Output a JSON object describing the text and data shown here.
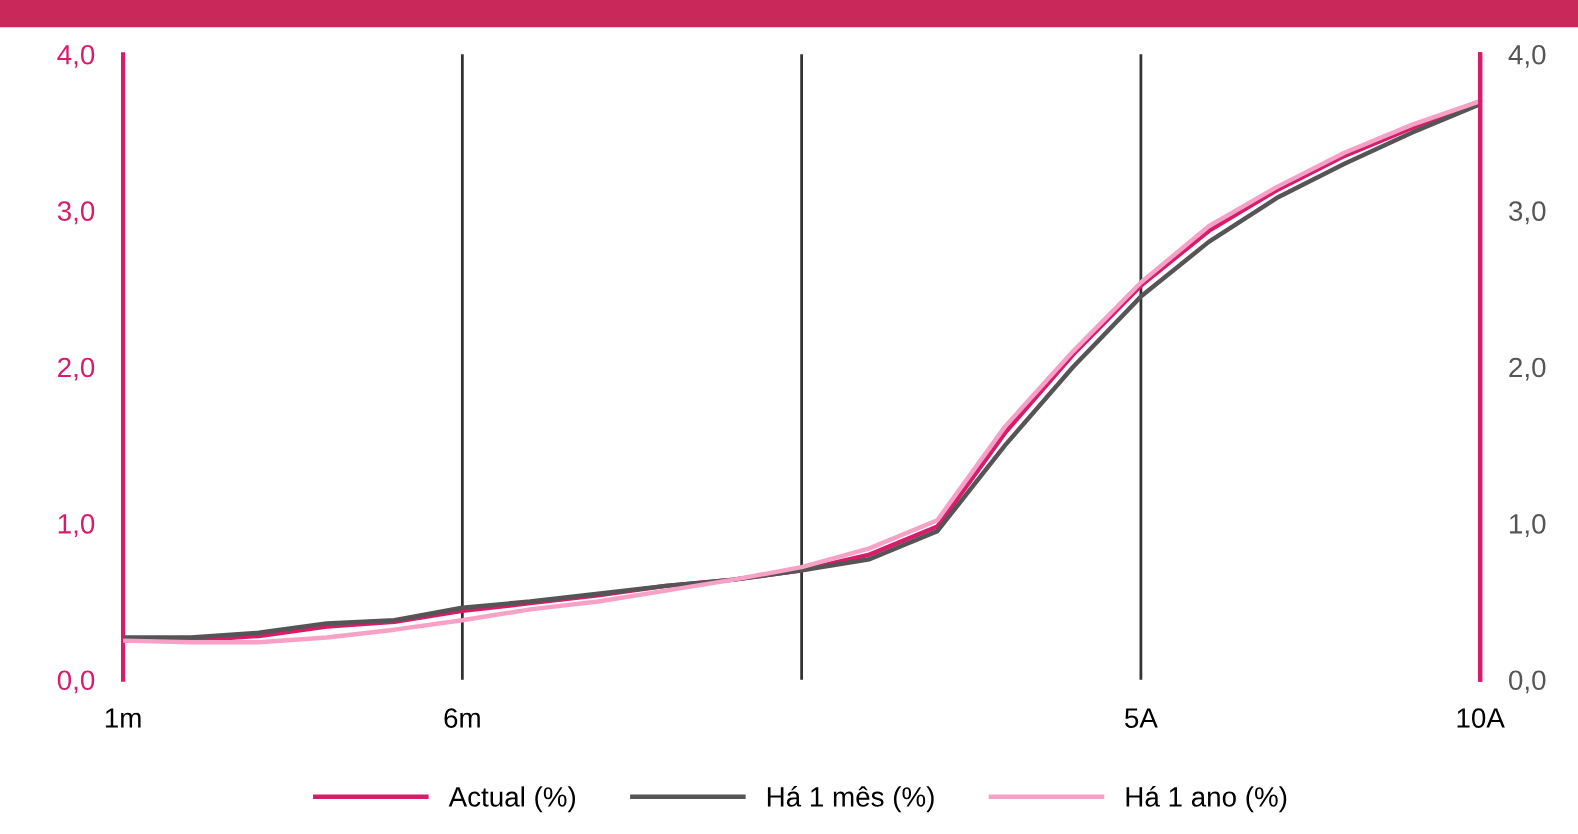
{
  "chart_data": {
    "type": "line",
    "categories": [
      "1m",
      null,
      null,
      null,
      null,
      "6m",
      null,
      null,
      null,
      null,
      null,
      null,
      null,
      null,
      null,
      "5A",
      null,
      null,
      null,
      null,
      "10A"
    ],
    "series": [
      {
        "name": "Actual (%)",
        "color": "#d81b6a",
        "values": [
          0.25,
          0.25,
          0.28,
          0.34,
          0.37,
          0.44,
          0.49,
          0.54,
          0.6,
          0.64,
          0.7,
          0.8,
          0.98,
          1.58,
          2.08,
          2.52,
          2.87,
          3.13,
          3.35,
          3.53,
          3.7
        ]
      },
      {
        "name": "Há 1 mês (%)",
        "color": "#555555",
        "values": [
          0.27,
          0.27,
          0.3,
          0.36,
          0.38,
          0.46,
          0.5,
          0.55,
          0.6,
          0.64,
          0.7,
          0.77,
          0.95,
          1.5,
          2.0,
          2.45,
          2.8,
          3.08,
          3.3,
          3.5,
          3.68
        ]
      },
      {
        "name": "Há 1 ano (%)",
        "color": "#f7a1c6",
        "values": [
          0.25,
          0.24,
          0.24,
          0.27,
          0.32,
          0.38,
          0.45,
          0.5,
          0.57,
          0.64,
          0.72,
          0.84,
          1.02,
          1.62,
          2.1,
          2.54,
          2.9,
          3.15,
          3.37,
          3.55,
          3.7
        ]
      }
    ],
    "ylim": [
      0,
      4
    ],
    "yticks": [
      {
        "value": 0,
        "label": "0,0"
      },
      {
        "value": 1,
        "label": "1,0"
      },
      {
        "value": 2,
        "label": "2,0"
      },
      {
        "value": 3,
        "label": "3,0"
      },
      {
        "value": 4,
        "label": "4,0"
      }
    ],
    "y2lim": [
      0,
      4
    ],
    "y2ticks": [
      {
        "value": 0,
        "label": "0,0"
      },
      {
        "value": 1,
        "label": "1,0"
      },
      {
        "value": 2,
        "label": "2,0"
      },
      {
        "value": 3,
        "label": "3,0"
      },
      {
        "value": 4,
        "label": "4,0"
      }
    ],
    "legend": "bottom",
    "grid": "x",
    "marker": "none",
    "line_style": "solid"
  }
}
